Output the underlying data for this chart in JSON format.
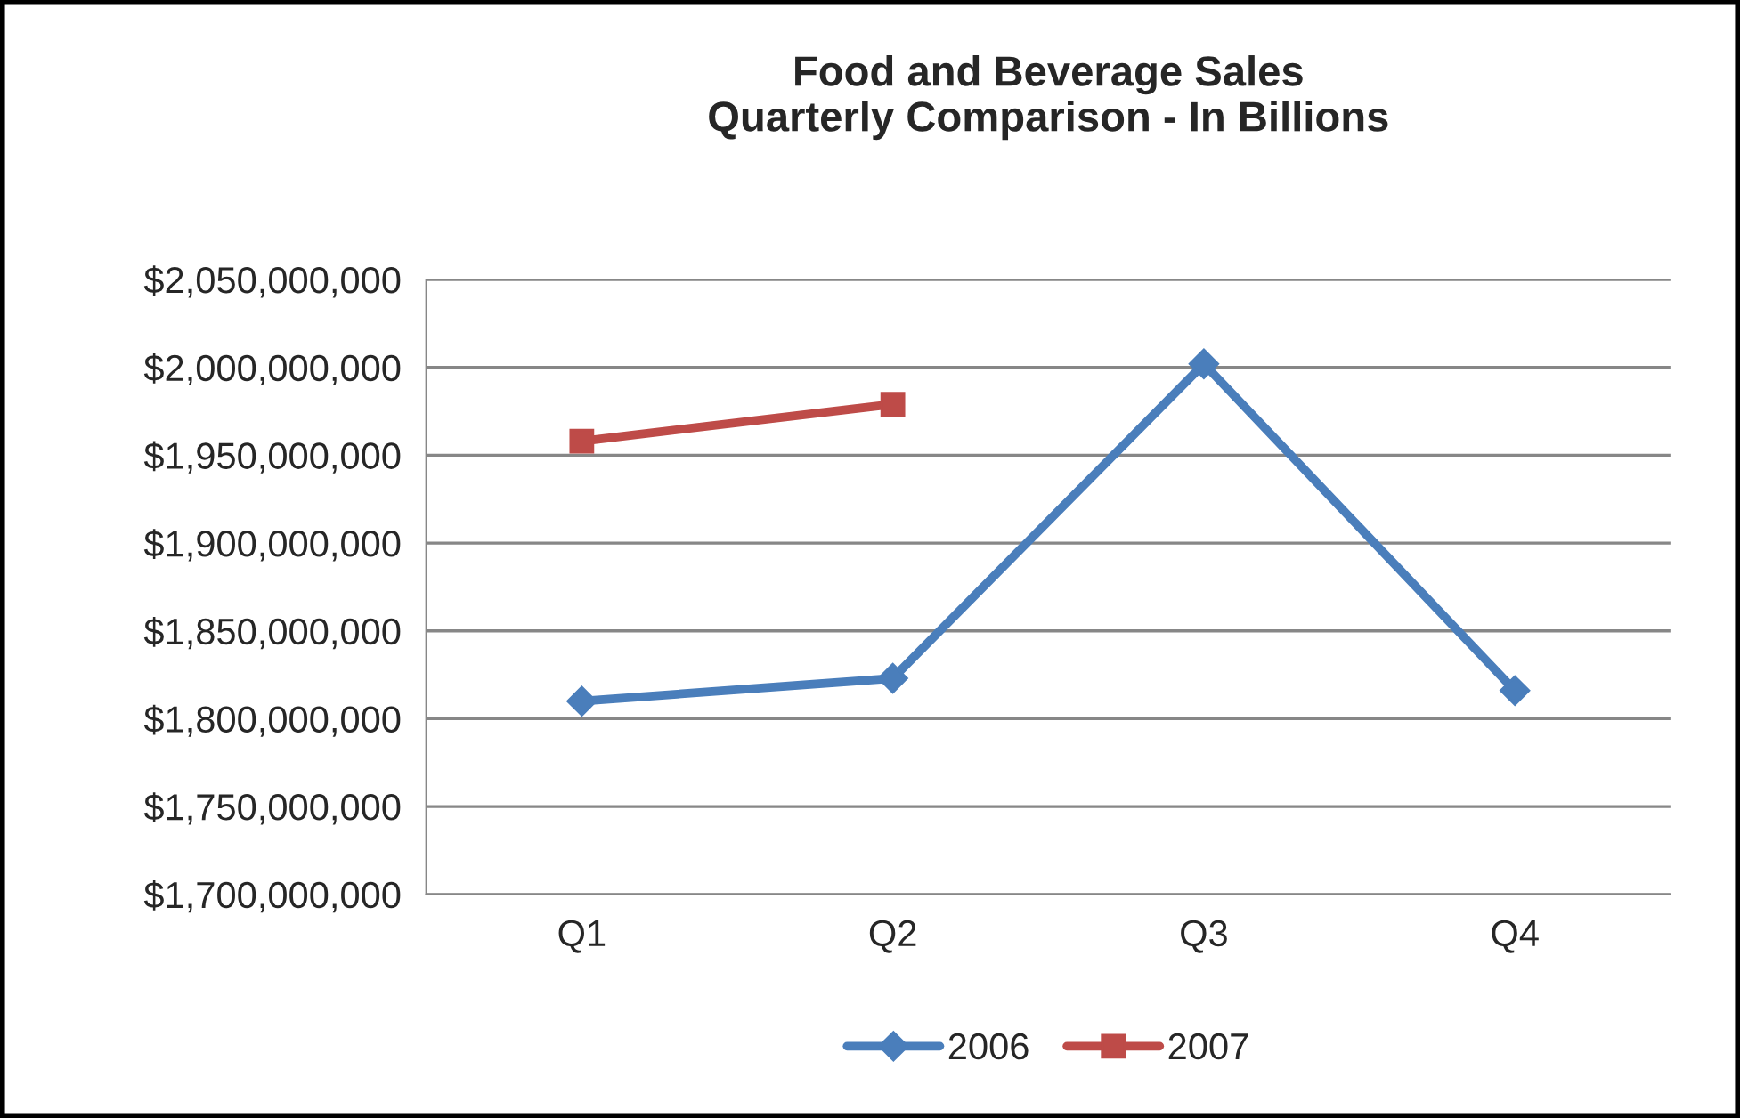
{
  "chart_data": {
    "type": "line",
    "title": "Food and Beverage Sales\nQuarterly Comparison - In Billions",
    "categories": [
      "Q1",
      "Q2",
      "Q3",
      "Q4"
    ],
    "series": [
      {
        "name": "2006",
        "color": "#4a7ebb",
        "marker": "diamond",
        "values": [
          1810000000,
          1823000000,
          2002000000,
          1816000000
        ]
      },
      {
        "name": "2007",
        "color": "#be4b48",
        "marker": "square",
        "values": [
          1958000000,
          1979000000,
          null,
          null
        ]
      }
    ],
    "ylim": [
      1700000000,
      2050000000
    ],
    "yticks": [
      {
        "value": 1700000000,
        "label": "$1,700,000,000"
      },
      {
        "value": 1750000000,
        "label": "$1,750,000,000"
      },
      {
        "value": 1800000000,
        "label": "$1,800,000,000"
      },
      {
        "value": 1850000000,
        "label": "$1,850,000,000"
      },
      {
        "value": 1900000000,
        "label": "$1,900,000,000"
      },
      {
        "value": 1950000000,
        "label": "$1,950,000,000"
      },
      {
        "value": 2000000000,
        "label": "$2,000,000,000"
      },
      {
        "value": 2050000000,
        "label": "$2,050,000,000"
      }
    ],
    "grid": "y",
    "legend": "bottom",
    "line_style": "solid"
  }
}
